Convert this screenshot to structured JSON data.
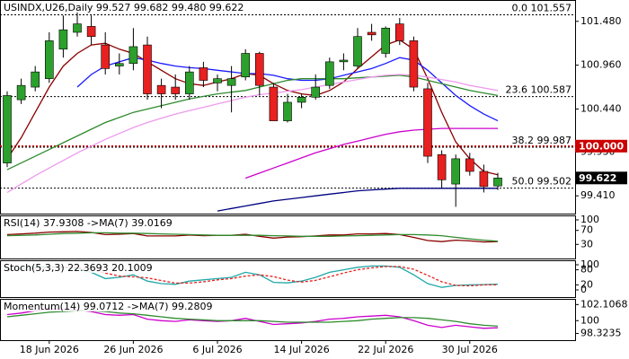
{
  "chart_data": [
    {
      "type": "candlestick",
      "title": "USINDX,U26,Daily  99.527 99.682 99.480 99.622",
      "categories": [
        null,
        null,
        null,
        "18 Jun 2026",
        null,
        null,
        null,
        null,
        null,
        "26 Jun 2026",
        null,
        null,
        null,
        null,
        null,
        "6 Jul 2026",
        null,
        null,
        null,
        null,
        null,
        "14 Jul 2026",
        null,
        null,
        null,
        null,
        null,
        "22 Jul 2026",
        null,
        null,
        null,
        null,
        null,
        "30 Jul 2026",
        null,
        null
      ],
      "open": [
        99.8,
        100.55,
        100.7,
        100.8,
        101.15,
        101.35,
        101.42,
        101.2,
        100.95,
        100.98,
        101.2,
        100.72,
        100.7,
        100.62,
        100.93,
        100.75,
        100.72,
        100.82,
        101.1,
        100.7,
        100.3,
        100.52,
        100.58,
        100.72,
        101.0,
        100.95,
        101.35,
        101.1,
        101.45,
        101.25,
        100.68,
        99.9,
        99.55,
        99.85,
        99.7,
        99.527
      ],
      "high": [
        100.65,
        100.8,
        100.95,
        101.35,
        101.55,
        101.6,
        101.55,
        101.35,
        101.1,
        101.4,
        101.3,
        100.8,
        100.85,
        100.95,
        101.0,
        100.85,
        100.95,
        101.15,
        101.12,
        100.75,
        100.62,
        100.62,
        100.85,
        101.05,
        101.1,
        101.4,
        101.45,
        101.42,
        101.52,
        101.3,
        100.75,
        99.95,
        99.9,
        99.92,
        99.78,
        99.682
      ],
      "low": [
        99.75,
        100.5,
        100.65,
        100.75,
        101.05,
        101.3,
        101.2,
        100.85,
        100.85,
        100.9,
        100.55,
        100.45,
        100.55,
        100.55,
        100.7,
        100.65,
        100.4,
        100.78,
        100.6,
        100.3,
        100.28,
        100.45,
        100.55,
        100.68,
        100.9,
        100.92,
        101.25,
        101.05,
        101.2,
        100.65,
        99.8,
        99.5,
        99.28,
        99.65,
        99.45,
        99.48
      ],
      "close": [
        100.6,
        100.72,
        100.88,
        101.25,
        101.38,
        101.45,
        101.3,
        100.92,
        100.98,
        101.18,
        100.62,
        100.62,
        100.62,
        100.88,
        100.78,
        100.8,
        100.8,
        101.1,
        100.72,
        100.3,
        100.52,
        100.58,
        100.7,
        101.0,
        101.02,
        101.3,
        101.32,
        101.4,
        101.25,
        100.7,
        99.88,
        99.6,
        99.85,
        99.7,
        99.52,
        99.622
      ],
      "up_color": "#2ca02c",
      "down_color": "#e82020",
      "ylim": [
        99.21,
        101.68
      ],
      "yticks": [
        {
          "value": 101.48,
          "label": "101.480"
        },
        {
          "value": 100.96,
          "label": "100.960"
        },
        {
          "value": 100.44,
          "label": "100.440"
        },
        {
          "value": 99.93,
          "label": "99.930"
        },
        {
          "value": 99.41,
          "label": "99.410"
        }
      ],
      "series": [
        {
          "color": "#8b0000",
          "values": [
            99.85,
            100.1,
            100.4,
            100.7,
            100.95,
            101.1,
            101.2,
            101.22,
            101.15,
            101.1,
            101.0,
            100.9,
            100.8,
            100.74,
            100.72,
            100.76,
            100.8,
            100.86,
            100.84,
            100.74,
            100.66,
            100.62,
            100.6,
            100.66,
            100.76,
            100.92,
            101.06,
            101.2,
            101.26,
            101.15,
            100.8,
            100.4,
            100.05,
            99.85,
            99.7,
            99.66
          ]
        },
        {
          "color": "#1a1aff",
          "values": [
            null,
            null,
            null,
            null,
            null,
            100.7,
            100.85,
            100.95,
            101.0,
            101.05,
            101.02,
            100.98,
            100.95,
            100.93,
            100.92,
            100.9,
            100.88,
            100.86,
            100.86,
            100.84,
            100.8,
            100.78,
            100.78,
            100.8,
            100.84,
            100.88,
            100.92,
            100.98,
            101.05,
            101.02,
            100.9,
            100.75,
            100.6,
            100.48,
            100.38,
            100.3
          ]
        },
        {
          "color": "#2e8b2e",
          "values": [
            99.72,
            99.8,
            99.88,
            99.96,
            100.04,
            100.12,
            100.2,
            100.28,
            100.34,
            100.4,
            100.44,
            100.48,
            100.52,
            100.56,
            100.59,
            100.62,
            100.64,
            100.66,
            100.7,
            100.74,
            100.78,
            100.8,
            100.8,
            100.8,
            100.8,
            100.81,
            100.82,
            100.83,
            100.84,
            100.82,
            100.78,
            100.74,
            100.7,
            100.66,
            100.63,
            100.6
          ]
        },
        {
          "color": "#ee9aee",
          "values": [
            99.45,
            99.55,
            99.65,
            99.74,
            99.83,
            99.92,
            100.0,
            100.08,
            100.15,
            100.22,
            100.28,
            100.33,
            100.38,
            100.42,
            100.46,
            100.5,
            100.54,
            100.58,
            100.61,
            100.63,
            100.65,
            100.67,
            100.7,
            100.73,
            100.76,
            100.79,
            100.82,
            100.84,
            100.85,
            100.84,
            100.82,
            100.79,
            100.76,
            100.72,
            100.69,
            100.66
          ]
        },
        {
          "color": "#cc00cc",
          "values": [
            null,
            null,
            null,
            null,
            null,
            null,
            null,
            null,
            null,
            null,
            null,
            null,
            null,
            null,
            null,
            null,
            null,
            99.62,
            99.68,
            99.74,
            99.8,
            99.86,
            99.92,
            99.97,
            100.02,
            100.06,
            100.1,
            100.14,
            100.17,
            100.19,
            100.2,
            100.21,
            100.21,
            100.21,
            100.21,
            100.21
          ]
        },
        {
          "color": "#000080",
          "values": [
            null,
            null,
            null,
            null,
            null,
            null,
            null,
            null,
            null,
            null,
            null,
            null,
            null,
            null,
            null,
            99.23,
            99.26,
            99.29,
            99.32,
            99.35,
            99.37,
            99.39,
            99.41,
            99.43,
            99.45,
            99.47,
            99.48,
            99.49,
            99.5,
            99.5,
            99.5,
            99.5,
            99.5,
            99.5,
            99.5,
            99.5
          ]
        }
      ],
      "levels": [
        {
          "value": 101.557,
          "label": "0.0 101.557"
        },
        {
          "value": 100.587,
          "label": "23.6 100.587"
        },
        {
          "value": 99.987,
          "label": "38.2 99.987"
        },
        {
          "value": 99.502,
          "label": "50.0 99.502"
        }
      ],
      "markers": [
        {
          "value": 100,
          "label": "100.000",
          "color": "#cc0000",
          "line": true
        },
        {
          "value": 99.622,
          "label": "99.622",
          "color": "#000000",
          "line": false
        }
      ]
    },
    {
      "type": "line",
      "title": "RSI(14) 37.9308 ->MA(7) 39.0169",
      "ylim": [
        0,
        100
      ],
      "yticks": [
        100,
        70,
        30
      ],
      "series": [
        {
          "color": "#8b0000",
          "values": [
            58,
            60,
            62,
            65,
            66,
            67,
            64,
            58,
            59,
            61,
            54,
            54,
            54,
            57,
            55,
            56,
            56,
            59,
            53,
            48,
            51,
            52,
            54,
            57,
            57,
            60,
            60,
            61,
            58,
            50,
            41,
            38,
            42,
            40,
            37,
            37.9308
          ]
        },
        {
          "color": "#2e8b2e",
          "values": [
            55,
            56,
            57,
            59,
            61,
            62,
            63,
            63,
            62,
            62,
            61,
            60,
            59,
            58,
            57,
            56,
            56,
            56,
            56,
            55,
            54,
            53,
            53,
            53,
            54,
            55,
            56,
            57,
            58,
            58,
            57,
            55,
            50,
            46,
            42,
            39.0169
          ]
        }
      ]
    },
    {
      "type": "line",
      "title": "Stoch(5,3,3) 22.3693 20.1009",
      "ylim": [
        0,
        100
      ],
      "yticks": [
        100,
        80,
        20,
        0
      ],
      "series": [
        {
          "color": "#20a8a8",
          "values": [
            80,
            85,
            90,
            92,
            90,
            85,
            70,
            45,
            50,
            60,
            35,
            25,
            22,
            35,
            40,
            45,
            50,
            70,
            60,
            30,
            28,
            35,
            50,
            70,
            80,
            90,
            95,
            95,
            90,
            60,
            25,
            10,
            18,
            20,
            21,
            22.3693
          ]
        },
        {
          "color": "#e82020",
          "dash": true,
          "values": [
            75,
            80,
            85,
            89,
            91,
            89,
            82,
            67,
            55,
            52,
            48,
            37,
            27,
            27,
            32,
            40,
            45,
            55,
            60,
            53,
            39,
            31,
            38,
            52,
            67,
            80,
            88,
            93,
            93,
            82,
            58,
            32,
            18,
            16,
            20,
            20.1009
          ]
        }
      ]
    },
    {
      "type": "line",
      "title": "Momentum(14) 99.0712 ->MA(7) 99.2809",
      "ylim": [
        97.8,
        102.5
      ],
      "yticks": [
        102.1068,
        100,
        98.3235
      ],
      "series": [
        {
          "color": "#cc00cc",
          "values": [
            100.8,
            101.0,
            101.3,
            101.5,
            101.5,
            101.4,
            101.2,
            100.8,
            100.7,
            100.8,
            100.2,
            100.0,
            99.9,
            100.1,
            100.0,
            99.9,
            100.0,
            100.3,
            99.9,
            99.5,
            99.6,
            99.7,
            99.9,
            100.2,
            100.3,
            100.5,
            100.6,
            100.7,
            100.5,
            100.0,
            99.4,
            99.1,
            99.4,
            99.2,
            99.0,
            99.0712
          ]
        },
        {
          "color": "#2e8b2e",
          "values": [
            100.5,
            100.7,
            100.9,
            101.1,
            101.2,
            101.3,
            101.3,
            101.2,
            101.0,
            100.9,
            100.7,
            100.5,
            100.3,
            100.2,
            100.1,
            100.0,
            100.0,
            100.0,
            100.0,
            99.9,
            99.8,
            99.8,
            99.8,
            99.8,
            99.9,
            100.0,
            100.2,
            100.3,
            100.4,
            100.4,
            100.3,
            100.1,
            99.9,
            99.6,
            99.4,
            99.2809
          ]
        }
      ]
    }
  ]
}
